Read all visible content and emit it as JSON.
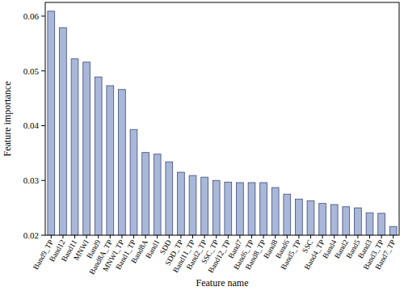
{
  "chart_data": {
    "type": "bar",
    "x_label": "Feature name",
    "y_label": "Feature importance",
    "categories": [
      "Band9_TP",
      "Band12",
      "Band11",
      "MNWI",
      "Band9",
      "Band8A_TP",
      "MNWI_TP",
      "Band1_TP",
      "Band8A",
      "Band1",
      "SDD",
      "SDD_TP",
      "Band11_TP",
      "Band2_TP",
      "SSC_TP",
      "Band12_TP",
      "Band7",
      "Band6_TP",
      "Band8_TP",
      "Band8",
      "Band6",
      "Band5_TP",
      "SSC",
      "Band4_TP",
      "Band4",
      "Band2",
      "Band5",
      "Band3",
      "Band3_TP",
      "Band7_TP"
    ],
    "values": [
      0.0609,
      0.0579,
      0.0522,
      0.0516,
      0.0489,
      0.0473,
      0.0466,
      0.0393,
      0.0351,
      0.0348,
      0.0334,
      0.0315,
      0.0309,
      0.0306,
      0.03,
      0.0297,
      0.0296,
      0.0296,
      0.0296,
      0.0287,
      0.0275,
      0.0266,
      0.0263,
      0.0258,
      0.0256,
      0.0252,
      0.025,
      0.0241,
      0.024,
      0.0216
    ],
    "color": "#a9b7d8",
    "ylim": [
      0.02,
      0.0625
    ],
    "yticks": [
      0.02,
      0.03,
      0.04,
      0.05,
      0.06
    ],
    "grid": false
  }
}
